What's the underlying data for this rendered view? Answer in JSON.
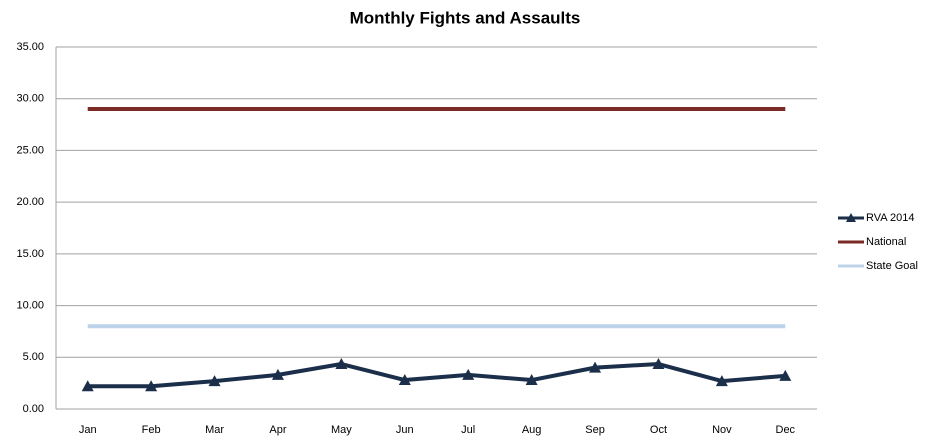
{
  "chart_data": {
    "type": "line",
    "title": "Monthly Fights and Assaults",
    "categories": [
      "Jan",
      "Feb",
      "Mar",
      "Apr",
      "May",
      "Jun",
      "Jul",
      "Aug",
      "Sep",
      "Oct",
      "Nov",
      "Dec"
    ],
    "series": [
      {
        "name": "RVA 2014",
        "color": "#1b2f4a",
        "marker": "triangle",
        "values": [
          2.2,
          2.2,
          2.7,
          3.3,
          4.35,
          2.8,
          3.3,
          2.8,
          4.0,
          4.35,
          2.7,
          3.2
        ]
      },
      {
        "name": "National",
        "color": "#7b2a26",
        "values": [
          29,
          29,
          29,
          29,
          29,
          29,
          29,
          29,
          29,
          29,
          29,
          29
        ]
      },
      {
        "name": "State Goal",
        "color": "#bcd3ea",
        "values": [
          8,
          8,
          8,
          8,
          8,
          8,
          8,
          8,
          8,
          8,
          8,
          8
        ]
      }
    ],
    "ylim": [
      0,
      35
    ],
    "yticks": [
      {
        "value": 0,
        "label": "0.00"
      },
      {
        "value": 5,
        "label": "5.00"
      },
      {
        "value": 10,
        "label": "10.00"
      },
      {
        "value": 15,
        "label": "15.00"
      },
      {
        "value": 20,
        "label": "20.00"
      },
      {
        "value": 25,
        "label": "25.00"
      },
      {
        "value": 30,
        "label": "30.00"
      },
      {
        "value": 35,
        "label": "35.00"
      }
    ],
    "grid": true,
    "legend": "right"
  }
}
